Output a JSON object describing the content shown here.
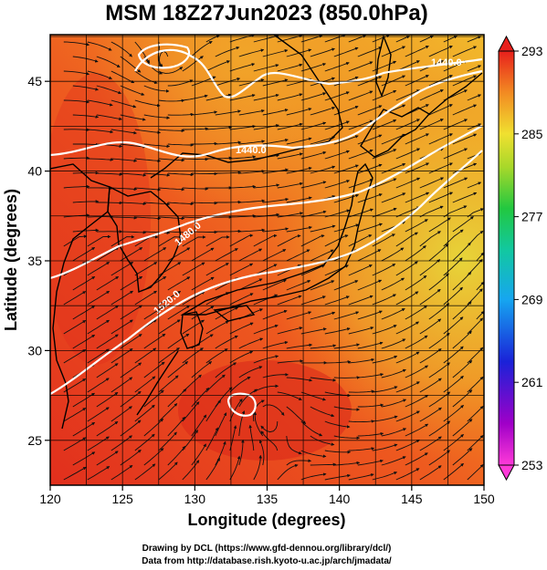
{
  "title": "MSM 18Z27Jun2023 (850.0hPa)",
  "xlabel": "Longitude (degrees)",
  "ylabel": "Latitude  (degrees)",
  "x_ticks": [
    "120",
    "125",
    "130",
    "135",
    "140",
    "145",
    "150"
  ],
  "y_ticks": [
    "25",
    "30",
    "35",
    "40",
    "45"
  ],
  "colorbar": {
    "ticks": [
      "293",
      "285",
      "277",
      "269",
      "261",
      "253"
    ],
    "min": 253,
    "max": 293
  },
  "contour_labels": [
    "1440.0",
    "1480.0",
    "1520.0",
    "1480.0"
  ],
  "footer": {
    "line1": "Drawing by DCL (https://www.gfd-dennou.org/library/dcl/)",
    "line2": "Data from http://database.rish.kyoto-u.ac.jp/arch/jmadata/"
  },
  "map": {
    "lon_range": [
      120,
      150
    ],
    "lat_range": [
      22.5,
      47.6
    ],
    "field": "temperature (K)",
    "contour_color": "#ffffff",
    "colors": {
      "warm": "#e8321c",
      "mid": "#f08a22",
      "cool": "#e6d23a"
    }
  }
}
